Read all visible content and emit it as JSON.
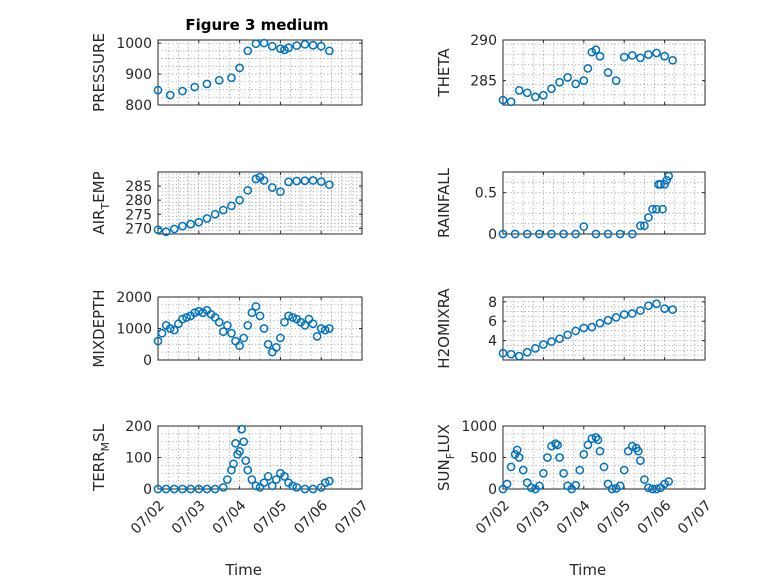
{
  "figure_title": "Figure 3 medium",
  "colors": {
    "marker": "#0072BD",
    "axes": "#262626",
    "grid": "#9a9a9a"
  },
  "chart_data": [
    {
      "type": "scatter",
      "ylabel": "PRESSURE",
      "ylabel_sub": "",
      "xlim": [
        "07/02",
        "07/07"
      ],
      "ylim": [
        800,
        1010
      ],
      "yticks": [
        800,
        900,
        1000
      ],
      "grid": true,
      "show_xticklabels": false,
      "xlabel": "",
      "x": [
        2.0,
        2.3,
        2.6,
        2.9,
        3.2,
        3.5,
        3.8,
        4.0,
        4.2,
        4.4,
        4.6,
        4.8,
        5.0,
        5.1,
        5.2,
        5.4,
        5.6,
        5.8,
        6.0,
        6.2
      ],
      "y": [
        848,
        832,
        845,
        858,
        868,
        880,
        888,
        920,
        975,
        998,
        1000,
        990,
        982,
        978,
        985,
        992,
        996,
        993,
        990,
        975
      ]
    },
    {
      "type": "scatter",
      "ylabel": "THETA",
      "ylabel_sub": "",
      "xlim": [
        "07/02",
        "07/07"
      ],
      "ylim": [
        282,
        290
      ],
      "yticks": [
        285,
        290
      ],
      "grid": true,
      "show_xticklabels": false,
      "xlabel": "",
      "x": [
        2.0,
        2.2,
        2.4,
        2.6,
        2.8,
        3.0,
        3.2,
        3.4,
        3.6,
        3.8,
        4.0,
        4.1,
        4.2,
        4.3,
        4.4,
        4.6,
        4.8,
        5.0,
        5.2,
        5.4,
        5.6,
        5.8,
        6.0,
        6.2
      ],
      "y": [
        282.6,
        282.4,
        283.8,
        283.5,
        283.0,
        283.2,
        284.0,
        284.8,
        285.4,
        284.6,
        285.0,
        286.5,
        288.5,
        288.8,
        288.0,
        286.0,
        285.0,
        287.9,
        288.1,
        287.8,
        288.2,
        288.4,
        288.0,
        287.5
      ]
    },
    {
      "type": "scatter",
      "ylabel": "AIR",
      "ylabel_sub": "T",
      "ylabel_after": "EMP",
      "xlim": [
        "07/02",
        "07/07"
      ],
      "ylim": [
        268,
        290
      ],
      "yticks": [
        270,
        275,
        280,
        285
      ],
      "grid": true,
      "show_xticklabels": false,
      "xlabel": "",
      "x": [
        2.0,
        2.2,
        2.4,
        2.6,
        2.8,
        3.0,
        3.2,
        3.4,
        3.6,
        3.8,
        4.0,
        4.2,
        4.4,
        4.5,
        4.6,
        4.8,
        5.0,
        5.2,
        5.4,
        5.6,
        5.8,
        6.0,
        6.2
      ],
      "y": [
        269.5,
        268.8,
        269.8,
        270.8,
        271.5,
        272.2,
        273.5,
        275.0,
        276.5,
        278.0,
        280.0,
        283.5,
        287.5,
        288.2,
        287.0,
        284.5,
        283.0,
        286.5,
        286.8,
        286.9,
        287.0,
        286.6,
        285.5
      ]
    },
    {
      "type": "scatter",
      "ylabel": "RAINFALL",
      "ylabel_sub": "",
      "xlim": [
        "07/02",
        "07/07"
      ],
      "ylim": [
        0,
        0.75
      ],
      "yticks": [
        0,
        0.5
      ],
      "grid": true,
      "show_xticklabels": false,
      "xlabel": "",
      "x": [
        2.0,
        2.3,
        2.6,
        2.9,
        3.2,
        3.5,
        3.8,
        4.0,
        4.3,
        4.6,
        4.9,
        5.2,
        5.4,
        5.5,
        5.6,
        5.7,
        5.8,
        5.85,
        5.9,
        5.95,
        6.0,
        6.05,
        6.1
      ],
      "y": [
        0,
        0,
        0,
        0,
        0,
        0,
        0,
        0.09,
        0,
        0,
        0,
        0,
        0.1,
        0.1,
        0.2,
        0.3,
        0.3,
        0.6,
        0.6,
        0.3,
        0.6,
        0.65,
        0.7
      ]
    },
    {
      "type": "scatter",
      "ylabel": "MIXDEPTH",
      "ylabel_sub": "",
      "xlim": [
        "07/02",
        "07/07"
      ],
      "ylim": [
        0,
        2000
      ],
      "yticks": [
        0,
        1000,
        2000
      ],
      "grid": true,
      "show_xticklabels": false,
      "xlabel": "",
      "x": [
        2.0,
        2.1,
        2.2,
        2.3,
        2.4,
        2.5,
        2.6,
        2.7,
        2.8,
        2.9,
        3.0,
        3.1,
        3.2,
        3.3,
        3.4,
        3.5,
        3.6,
        3.7,
        3.8,
        3.9,
        4.0,
        4.1,
        4.2,
        4.3,
        4.4,
        4.5,
        4.6,
        4.7,
        4.8,
        4.9,
        5.0,
        5.1,
        5.2,
        5.3,
        5.4,
        5.5,
        5.6,
        5.7,
        5.8,
        5.9,
        6.0,
        6.1,
        6.2
      ],
      "y": [
        600,
        850,
        1100,
        1000,
        950,
        1150,
        1300,
        1350,
        1400,
        1500,
        1550,
        1500,
        1580,
        1450,
        1350,
        1200,
        900,
        1100,
        850,
        600,
        450,
        700,
        1100,
        1500,
        1700,
        1400,
        1000,
        500,
        250,
        400,
        700,
        1200,
        1400,
        1350,
        1300,
        1200,
        1100,
        1300,
        1150,
        750,
        1000,
        950,
        1000
      ]
    },
    {
      "type": "scatter",
      "ylabel": "H2OMIXRA",
      "ylabel_sub": "",
      "xlim": [
        "07/02",
        "07/07"
      ],
      "ylim": [
        2,
        8.5
      ],
      "yticks": [
        4,
        6,
        8
      ],
      "grid": true,
      "show_xticklabels": false,
      "xlabel": "",
      "x": [
        2.0,
        2.2,
        2.4,
        2.6,
        2.8,
        3.0,
        3.2,
        3.4,
        3.6,
        3.8,
        4.0,
        4.2,
        4.4,
        4.6,
        4.8,
        5.0,
        5.2,
        5.4,
        5.6,
        5.8,
        6.0,
        6.2
      ],
      "y": [
        2.7,
        2.6,
        2.4,
        2.8,
        3.2,
        3.6,
        3.9,
        4.2,
        4.6,
        5.0,
        5.3,
        5.4,
        5.8,
        6.1,
        6.4,
        6.7,
        6.8,
        7.1,
        7.6,
        7.8,
        7.3,
        7.2
      ]
    },
    {
      "type": "scatter",
      "ylabel": "TERR",
      "ylabel_sub": "M",
      "ylabel_after": "SL",
      "xlim": [
        "07/02",
        "07/07"
      ],
      "ylim": [
        0,
        200
      ],
      "yticks": [
        0,
        100,
        200
      ],
      "grid": true,
      "show_xticklabels": true,
      "xticks": [
        "07/02",
        "07/03",
        "07/04",
        "07/05",
        "07/06",
        "07/07"
      ],
      "xlabel": "Time",
      "x": [
        2.0,
        2.2,
        2.4,
        2.6,
        2.8,
        3.0,
        3.2,
        3.4,
        3.6,
        3.7,
        3.8,
        3.85,
        3.9,
        3.95,
        4.0,
        4.05,
        4.1,
        4.15,
        4.2,
        4.3,
        4.4,
        4.5,
        4.6,
        4.7,
        4.8,
        4.9,
        5.0,
        5.1,
        5.2,
        5.3,
        5.4,
        5.6,
        5.8,
        6.0,
        6.1,
        6.2
      ],
      "y": [
        0,
        0,
        0,
        0,
        0,
        0,
        0,
        0,
        5,
        30,
        60,
        80,
        145,
        110,
        120,
        190,
        150,
        90,
        60,
        30,
        10,
        5,
        20,
        40,
        10,
        30,
        50,
        40,
        20,
        10,
        5,
        0,
        0,
        5,
        20,
        25
      ]
    },
    {
      "type": "scatter",
      "ylabel": "SUN",
      "ylabel_sub": "F",
      "ylabel_after": "LUX",
      "xlim": [
        "07/02",
        "07/07"
      ],
      "ylim": [
        0,
        1000
      ],
      "yticks": [
        0,
        500,
        1000
      ],
      "grid": true,
      "show_xticklabels": true,
      "xticks": [
        "07/02",
        "07/03",
        "07/04",
        "07/05",
        "07/06",
        "07/07"
      ],
      "xlabel": "Time",
      "x": [
        2.0,
        2.1,
        2.2,
        2.3,
        2.35,
        2.4,
        2.5,
        2.6,
        2.7,
        2.8,
        2.9,
        3.0,
        3.1,
        3.2,
        3.3,
        3.35,
        3.4,
        3.5,
        3.6,
        3.7,
        3.8,
        3.9,
        4.0,
        4.1,
        4.2,
        4.3,
        4.35,
        4.4,
        4.5,
        4.6,
        4.7,
        4.8,
        4.9,
        5.0,
        5.1,
        5.2,
        5.3,
        5.35,
        5.4,
        5.5,
        5.6,
        5.7,
        5.8,
        5.9,
        6.0,
        6.1
      ],
      "y": [
        0,
        80,
        350,
        550,
        620,
        500,
        300,
        100,
        20,
        0,
        50,
        250,
        500,
        680,
        720,
        700,
        500,
        250,
        50,
        0,
        60,
        300,
        550,
        700,
        800,
        820,
        780,
        600,
        350,
        80,
        0,
        10,
        50,
        300,
        600,
        680,
        650,
        600,
        450,
        150,
        20,
        0,
        0,
        20,
        80,
        120
      ]
    }
  ]
}
